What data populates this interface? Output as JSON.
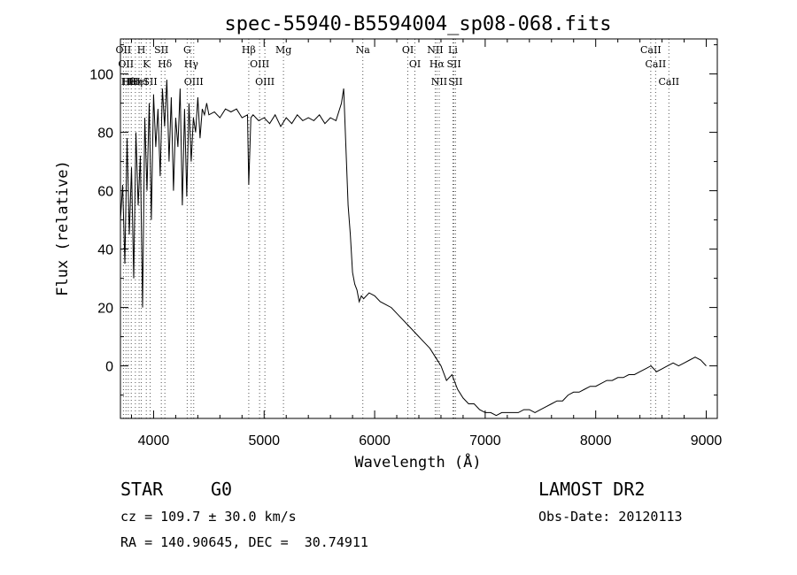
{
  "chart_data": {
    "type": "line",
    "title": "spec-55940-B5594004_sp08-068.fits",
    "xlabel": "Wavelength (Å)",
    "ylabel": "Flux (relative)",
    "xlim": [
      3700,
      9100
    ],
    "ylim": [
      -18,
      112
    ],
    "xticks": [
      4000,
      5000,
      6000,
      7000,
      8000,
      9000
    ],
    "yticks": [
      0,
      20,
      40,
      60,
      80,
      100
    ],
    "grid": false,
    "series": [
      {
        "x": [
          3700,
          3720,
          3740,
          3760,
          3780,
          3800,
          3820,
          3840,
          3860,
          3880,
          3900,
          3920,
          3940,
          3960,
          3980,
          4000,
          4020,
          4040,
          4060,
          4080,
          4100,
          4120,
          4140,
          4160,
          4180,
          4200,
          4220,
          4240,
          4260,
          4280,
          4300,
          4320,
          4340,
          4360,
          4380,
          4400,
          4420,
          4440,
          4460,
          4480,
          4500,
          4550,
          4600,
          4650,
          4700,
          4750,
          4800,
          4850,
          4861,
          4880,
          4900,
          4950,
          5000,
          5050,
          5100,
          5150,
          5200,
          5250,
          5300,
          5350,
          5400,
          5450,
          5500,
          5550,
          5600,
          5650,
          5700,
          5720,
          5740,
          5760,
          5780,
          5800,
          5820,
          5840,
          5860,
          5880,
          5900,
          5950,
          6000,
          6050,
          6100,
          6150,
          6200,
          6250,
          6300,
          6350,
          6400,
          6450,
          6500,
          6550,
          6600,
          6650,
          6700,
          6750,
          6800,
          6850,
          6900,
          6950,
          7000,
          7050,
          7100,
          7150,
          7200,
          7250,
          7300,
          7350,
          7400,
          7450,
          7500,
          7550,
          7600,
          7650,
          7700,
          7750,
          7800,
          7850,
          7900,
          7950,
          8000,
          8050,
          8100,
          8150,
          8200,
          8250,
          8300,
          8350,
          8400,
          8450,
          8500,
          8550,
          8600,
          8650,
          8700,
          8750,
          8800,
          8850,
          8900,
          8950,
          9000
        ],
        "values": [
          50,
          62,
          35,
          78,
          45,
          68,
          30,
          80,
          55,
          72,
          20,
          85,
          60,
          90,
          50,
          93,
          75,
          88,
          65,
          95,
          82,
          98,
          70,
          92,
          60,
          85,
          75,
          95,
          55,
          88,
          58,
          90,
          70,
          85,
          80,
          92,
          78,
          88,
          86,
          90,
          86,
          87,
          85,
          88,
          87,
          88,
          85,
          86,
          62,
          85,
          86,
          84,
          85,
          83,
          86,
          82,
          85,
          83,
          86,
          84,
          85,
          84,
          86,
          83,
          85,
          84,
          90,
          95,
          75,
          55,
          45,
          32,
          28,
          26,
          22,
          24,
          23,
          25,
          24,
          22,
          21,
          20,
          18,
          16,
          14,
          12,
          10,
          8,
          6,
          3,
          0,
          -5,
          -3,
          -8,
          -11,
          -13,
          -13,
          -15,
          -16,
          -16,
          -17,
          -16,
          -16,
          -16,
          -16,
          -15,
          -15,
          -16,
          -15,
          -14,
          -13,
          -12,
          -12,
          -10,
          -9,
          -9,
          -8,
          -7,
          -7,
          -6,
          -5,
          -5,
          -4,
          -4,
          -3,
          -3,
          -2,
          -1,
          0,
          -2,
          -1,
          0,
          1,
          0,
          1,
          2,
          3,
          2,
          0
        ]
      }
    ],
    "lines": [
      {
        "wl": 3727,
        "labels": [
          "OII"
        ]
      },
      {
        "wl": 3750,
        "labels": [
          "OII"
        ]
      },
      {
        "wl": 3771,
        "labels": [
          "Hθ"
        ]
      },
      {
        "wl": 3798,
        "labels": [
          "HeI"
        ]
      },
      {
        "wl": 3835,
        "labels": [
          "Hη"
        ]
      },
      {
        "wl": 3869,
        "labels": [
          "HeI"
        ]
      },
      {
        "wl": 3889,
        "labels": [
          "H"
        ]
      },
      {
        "wl": 3934,
        "labels": [
          "K"
        ]
      },
      {
        "wl": 3969,
        "labels": [
          "SII"
        ]
      },
      {
        "wl": 4070,
        "labels": [
          "SII"
        ]
      },
      {
        "wl": 4102,
        "labels": [
          "Hδ"
        ]
      },
      {
        "wl": 4304,
        "labels": [
          "G"
        ]
      },
      {
        "wl": 4340,
        "labels": [
          "Hγ"
        ]
      },
      {
        "wl": 4363,
        "labels": [
          "OIII"
        ]
      },
      {
        "wl": 4861,
        "labels": [
          "Hβ"
        ]
      },
      {
        "wl": 4959,
        "labels": [
          "OIII"
        ]
      },
      {
        "wl": 5007,
        "labels": [
          "OIII"
        ]
      },
      {
        "wl": 5175,
        "labels": [
          "Mg"
        ]
      },
      {
        "wl": 5893,
        "labels": [
          "Na"
        ]
      },
      {
        "wl": 6300,
        "labels": [
          "OI"
        ]
      },
      {
        "wl": 6364,
        "labels": [
          "OI"
        ]
      },
      {
        "wl": 6548,
        "labels": [
          "NII"
        ]
      },
      {
        "wl": 6563,
        "labels": [
          "Hα"
        ]
      },
      {
        "wl": 6584,
        "labels": [
          "NII"
        ]
      },
      {
        "wl": 6708,
        "labels": [
          "Li"
        ]
      },
      {
        "wl": 6717,
        "labels": [
          "SII"
        ]
      },
      {
        "wl": 6731,
        "labels": [
          "SII"
        ]
      },
      {
        "wl": 8498,
        "labels": [
          "CaII"
        ]
      },
      {
        "wl": 8542,
        "labels": [
          "CaII"
        ]
      },
      {
        "wl": 8662,
        "labels": [
          "CaII"
        ]
      }
    ]
  },
  "footer": {
    "object_class": "STAR",
    "subclass": "G0",
    "cz_line": "cz = 109.7 ± 30.0 km/s",
    "radec_line": "RA = 140.90645, DEC =  30.74911",
    "survey": "LAMOST DR2",
    "obs_date_line": "Obs-Date: 20120113"
  }
}
